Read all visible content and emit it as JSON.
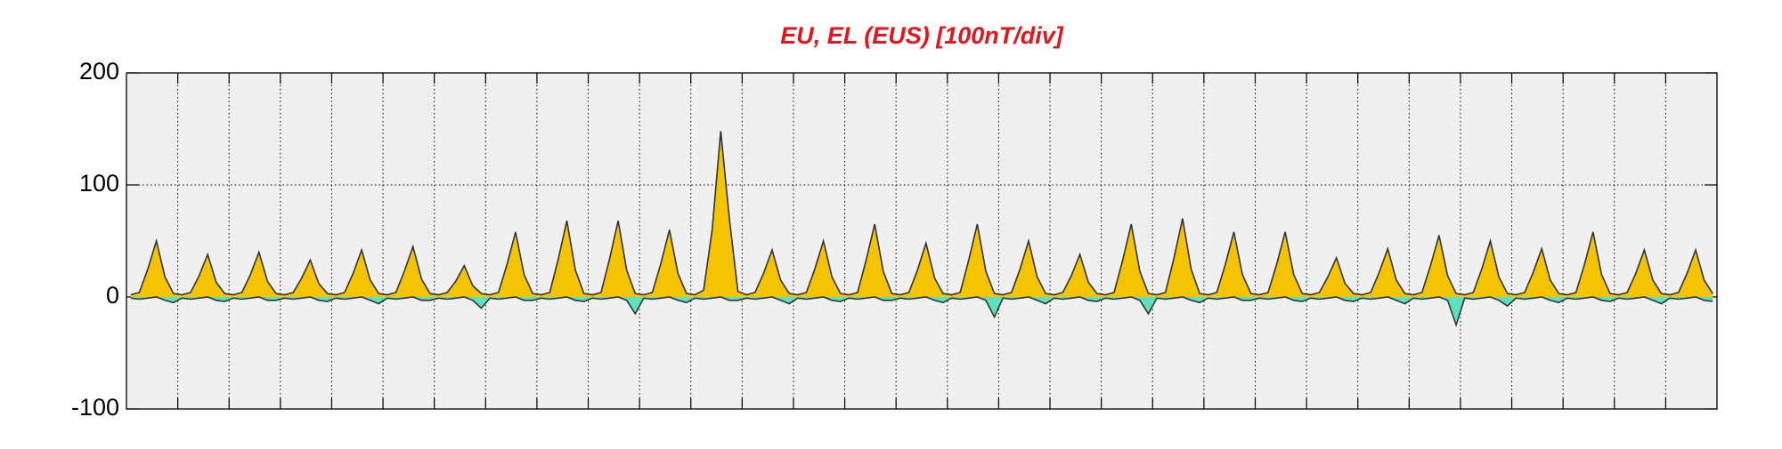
{
  "chart_data": {
    "type": "line",
    "title": "EU, EL (EUS)  [100nT/div]",
    "ylim": [
      -100,
      200
    ],
    "yticks": [
      -100,
      0,
      100,
      200
    ],
    "grid": true,
    "series": [
      {
        "color": "#f5c400",
        "values": [
          2,
          4,
          25,
          50,
          18,
          3,
          2,
          4,
          19,
          38,
          13,
          3,
          2,
          4,
          20,
          40,
          14,
          3,
          2,
          4,
          17,
          33,
          12,
          3,
          2,
          4,
          21,
          42,
          15,
          3,
          2,
          4,
          23,
          45,
          16,
          3,
          2,
          4,
          14,
          28,
          10,
          3,
          2,
          4,
          29,
          58,
          20,
          3,
          2,
          4,
          34,
          68,
          24,
          3,
          2,
          4,
          34,
          68,
          24,
          3,
          2,
          4,
          30,
          60,
          21,
          3,
          2,
          6,
          60,
          148,
          70,
          5,
          2,
          4,
          21,
          42,
          15,
          3,
          2,
          4,
          25,
          50,
          18,
          3,
          2,
          4,
          33,
          65,
          23,
          3,
          2,
          4,
          24,
          48,
          17,
          3,
          2,
          4,
          33,
          65,
          23,
          3,
          2,
          4,
          25,
          50,
          18,
          3,
          2,
          4,
          19,
          38,
          13,
          3,
          2,
          4,
          33,
          65,
          23,
          3,
          2,
          4,
          35,
          70,
          25,
          3,
          2,
          4,
          29,
          58,
          20,
          3,
          2,
          4,
          29,
          58,
          20,
          3,
          2,
          4,
          18,
          35,
          12,
          3,
          2,
          4,
          22,
          43,
          15,
          3,
          2,
          4,
          28,
          55,
          19,
          3,
          2,
          4,
          25,
          50,
          18,
          3,
          2,
          4,
          22,
          43,
          15,
          3,
          2,
          4,
          29,
          58,
          20,
          3,
          2,
          4,
          21,
          42,
          15,
          3,
          2,
          4,
          21,
          42,
          15,
          3
        ]
      },
      {
        "color": "#5fe0c0",
        "values": [
          -1,
          -2,
          -1,
          0,
          -3,
          -5,
          -1,
          -2,
          -1,
          0,
          -3,
          -4,
          -1,
          -2,
          -1,
          0,
          -3,
          -3,
          -1,
          -2,
          -1,
          0,
          -3,
          -4,
          -1,
          -2,
          -1,
          0,
          -3,
          -6,
          -1,
          -2,
          -1,
          0,
          -3,
          -3,
          -1,
          -2,
          -1,
          0,
          -3,
          -10,
          -1,
          -2,
          -1,
          0,
          -3,
          -3,
          -1,
          -2,
          -1,
          0,
          -3,
          -4,
          -1,
          -2,
          -1,
          0,
          -3,
          -15,
          -1,
          -2,
          -1,
          0,
          -3,
          -5,
          -1,
          -2,
          -1,
          0,
          -3,
          -3,
          -1,
          -2,
          -1,
          0,
          -3,
          -6,
          -1,
          -2,
          -1,
          0,
          -3,
          -4,
          -1,
          -2,
          -1,
          0,
          -3,
          -3,
          -1,
          -2,
          -1,
          0,
          -3,
          -5,
          -1,
          -2,
          -1,
          0,
          -3,
          -18,
          -1,
          -2,
          -1,
          0,
          -3,
          -6,
          -1,
          -2,
          -1,
          0,
          -3,
          -4,
          -1,
          -2,
          -1,
          0,
          -3,
          -15,
          -1,
          -2,
          -1,
          0,
          -3,
          -5,
          -1,
          -2,
          -1,
          0,
          -3,
          -3,
          -1,
          -2,
          -1,
          0,
          -3,
          -4,
          -1,
          -2,
          -1,
          0,
          -3,
          -4,
          -1,
          -2,
          -1,
          0,
          -3,
          -6,
          -1,
          -2,
          -1,
          0,
          -3,
          -25,
          -1,
          -2,
          -1,
          0,
          -3,
          -8,
          -1,
          -2,
          -1,
          0,
          -3,
          -5,
          -1,
          -2,
          -1,
          0,
          -3,
          -4,
          -1,
          -2,
          -1,
          0,
          -3,
          -6,
          -1,
          -2,
          -1,
          0,
          -3,
          -4
        ]
      }
    ]
  }
}
